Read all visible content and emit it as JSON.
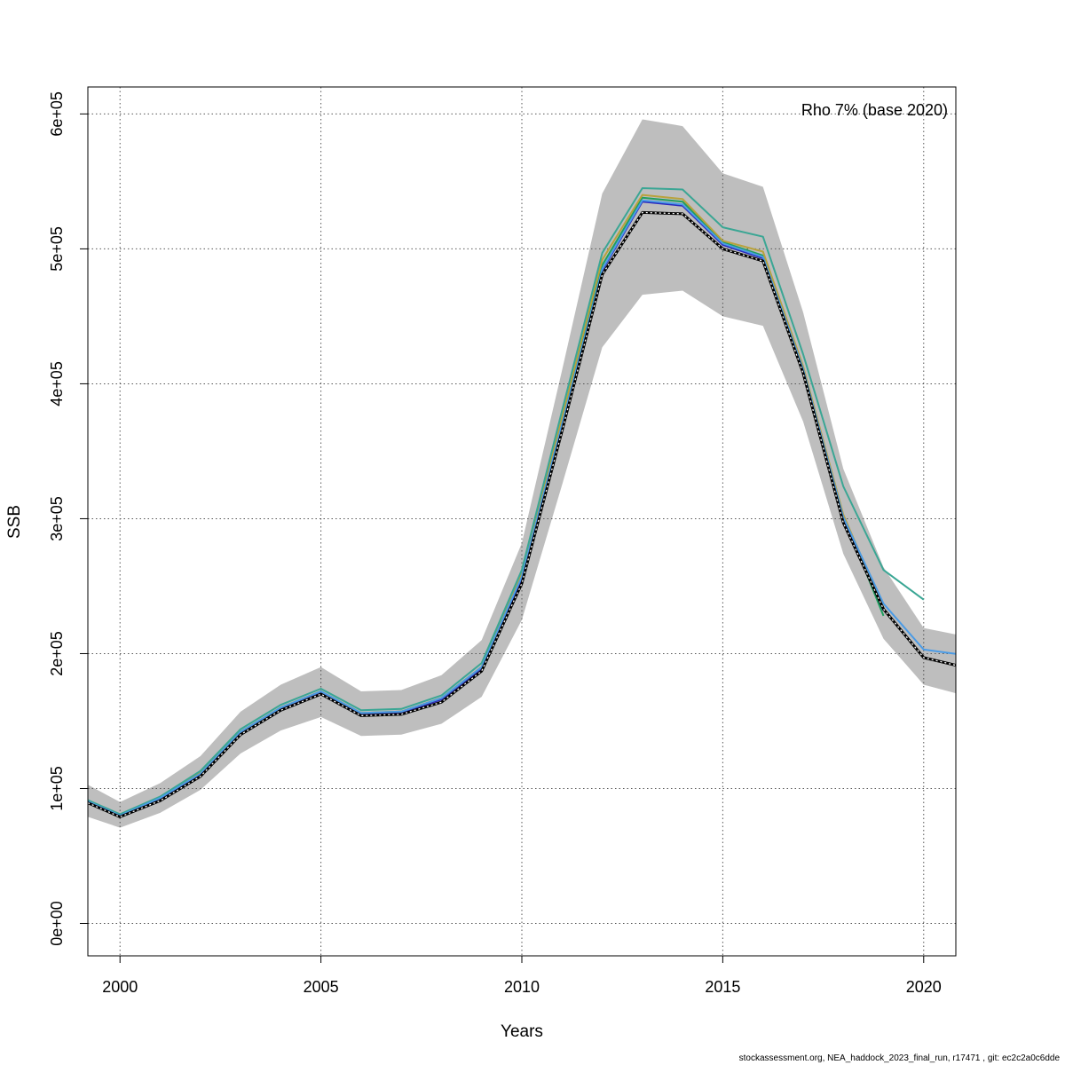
{
  "chart_data": {
    "type": "line",
    "title": "",
    "xlabel": "Years",
    "ylabel": "SSB",
    "annotation": "Rho 7% (base 2020)",
    "xlim": [
      1999.2,
      2020.8
    ],
    "ylim": [
      -24000,
      620000
    ],
    "x_ticks": [
      2000,
      2005,
      2010,
      2015,
      2020
    ],
    "x_tick_labels": [
      "2000",
      "2005",
      "2010",
      "2015",
      "2020"
    ],
    "y_ticks": [
      0,
      100000,
      200000,
      300000,
      400000,
      500000,
      600000
    ],
    "y_tick_labels": [
      "0e+00",
      "1e+05",
      "2e+05",
      "3e+05",
      "4e+05",
      "5e+05",
      "6e+05"
    ],
    "grid": true,
    "band": {
      "x": [
        1999,
        2000,
        2001,
        2002,
        2003,
        2004,
        2005,
        2006,
        2007,
        2008,
        2009,
        2010,
        2011,
        2012,
        2013,
        2014,
        2015,
        2016,
        2017,
        2018,
        2019,
        2020,
        2021
      ],
      "lower": [
        81000,
        71000,
        82000,
        99000,
        126000,
        143000,
        153000,
        139000,
        140000,
        148000,
        168000,
        225000,
        325000,
        427000,
        466000,
        469000,
        450000,
        443000,
        372000,
        274000,
        211000,
        177000,
        169000
      ],
      "upper": [
        106000,
        90000,
        104000,
        124000,
        157000,
        177000,
        190000,
        172000,
        173000,
        184000,
        210000,
        282000,
        410000,
        541000,
        596000,
        591000,
        556000,
        546000,
        453000,
        337000,
        264000,
        219000,
        213000
      ],
      "color": "#bebebe"
    },
    "series": [
      {
        "color": "#1e9e5e",
        "x": [
          1999,
          2000,
          2001,
          2002,
          2003,
          2004,
          2005,
          2006,
          2007,
          2008,
          2009,
          2010,
          2011,
          2012,
          2013,
          2014,
          2015,
          2016,
          2017,
          2018,
          2019
        ],
        "y": [
          93000,
          80000,
          93000,
          111000,
          142000,
          160000,
          172000,
          156000,
          157000,
          167000,
          190000,
          258000,
          373000,
          488000,
          538000,
          535000,
          505000,
          495000,
          412000,
          302000,
          228000
        ]
      },
      {
        "color": "#2b2bbd",
        "x": [
          1999,
          2000,
          2001,
          2002,
          2003,
          2004,
          2005,
          2006,
          2007,
          2008,
          2009,
          2010,
          2011,
          2012,
          2013,
          2014,
          2015,
          2016,
          2017,
          2018,
          2019
        ],
        "y": [
          92000,
          80000,
          92000,
          110000,
          141000,
          159000,
          171000,
          155000,
          156000,
          166000,
          189000,
          255000,
          368000,
          484000,
          535000,
          532000,
          503000,
          493000,
          410000,
          300000,
          232000
        ]
      },
      {
        "color": "#b8a23c",
        "x": [
          1999,
          2000,
          2001,
          2002,
          2003,
          2004,
          2005,
          2006,
          2007,
          2008,
          2009,
          2010,
          2011,
          2012,
          2013,
          2014,
          2015,
          2016,
          2017,
          2018,
          2019
        ],
        "y": [
          93000,
          80000,
          93000,
          112000,
          142000,
          160000,
          172000,
          156000,
          157000,
          167000,
          190000,
          259000,
          375000,
          492000,
          540000,
          537000,
          506000,
          498000,
          413000,
          303000,
          234000
        ]
      },
      {
        "color": "#3aa694",
        "x": [
          1999,
          2000,
          2001,
          2002,
          2003,
          2004,
          2005,
          2006,
          2007,
          2008,
          2009,
          2010,
          2011,
          2012,
          2013,
          2014,
          2015,
          2016,
          2017,
          2018,
          2019,
          2020
        ],
        "y": [
          94000,
          81000,
          94000,
          113000,
          144000,
          162000,
          174000,
          158000,
          159000,
          169000,
          193000,
          262000,
          380000,
          497000,
          545000,
          544000,
          516000,
          509000,
          422000,
          324000,
          262000,
          240000
        ]
      },
      {
        "color": "#4a9be6",
        "x": [
          1999,
          2000,
          2001,
          2002,
          2003,
          2004,
          2005,
          2006,
          2007,
          2008,
          2009,
          2010,
          2011,
          2012,
          2013,
          2014,
          2015,
          2016,
          2017,
          2018,
          2019,
          2020,
          2021
        ],
        "y": [
          93000,
          80000,
          93000,
          111000,
          142000,
          160000,
          172000,
          156000,
          157000,
          167000,
          190000,
          257000,
          370000,
          485000,
          536000,
          533000,
          504000,
          494000,
          411000,
          301000,
          237000,
          203000,
          199000
        ]
      },
      {
        "color": "#000000",
        "dashed": true,
        "x": [
          1999,
          2000,
          2001,
          2002,
          2003,
          2004,
          2005,
          2006,
          2007,
          2008,
          2009,
          2010,
          2011,
          2012,
          2013,
          2014,
          2015,
          2016,
          2017,
          2018,
          2019,
          2020,
          2021
        ],
        "y": [
          92000,
          79000,
          91000,
          109000,
          140000,
          158000,
          170000,
          154000,
          155000,
          164000,
          187000,
          252000,
          365000,
          481000,
          527000,
          526000,
          500000,
          491000,
          408000,
          297000,
          233000,
          197000,
          190000
        ]
      }
    ]
  },
  "footer": "stockassessment.org, NEA_haddock_2023_final_run, r17471 , git: ec2c2a0c6dde"
}
